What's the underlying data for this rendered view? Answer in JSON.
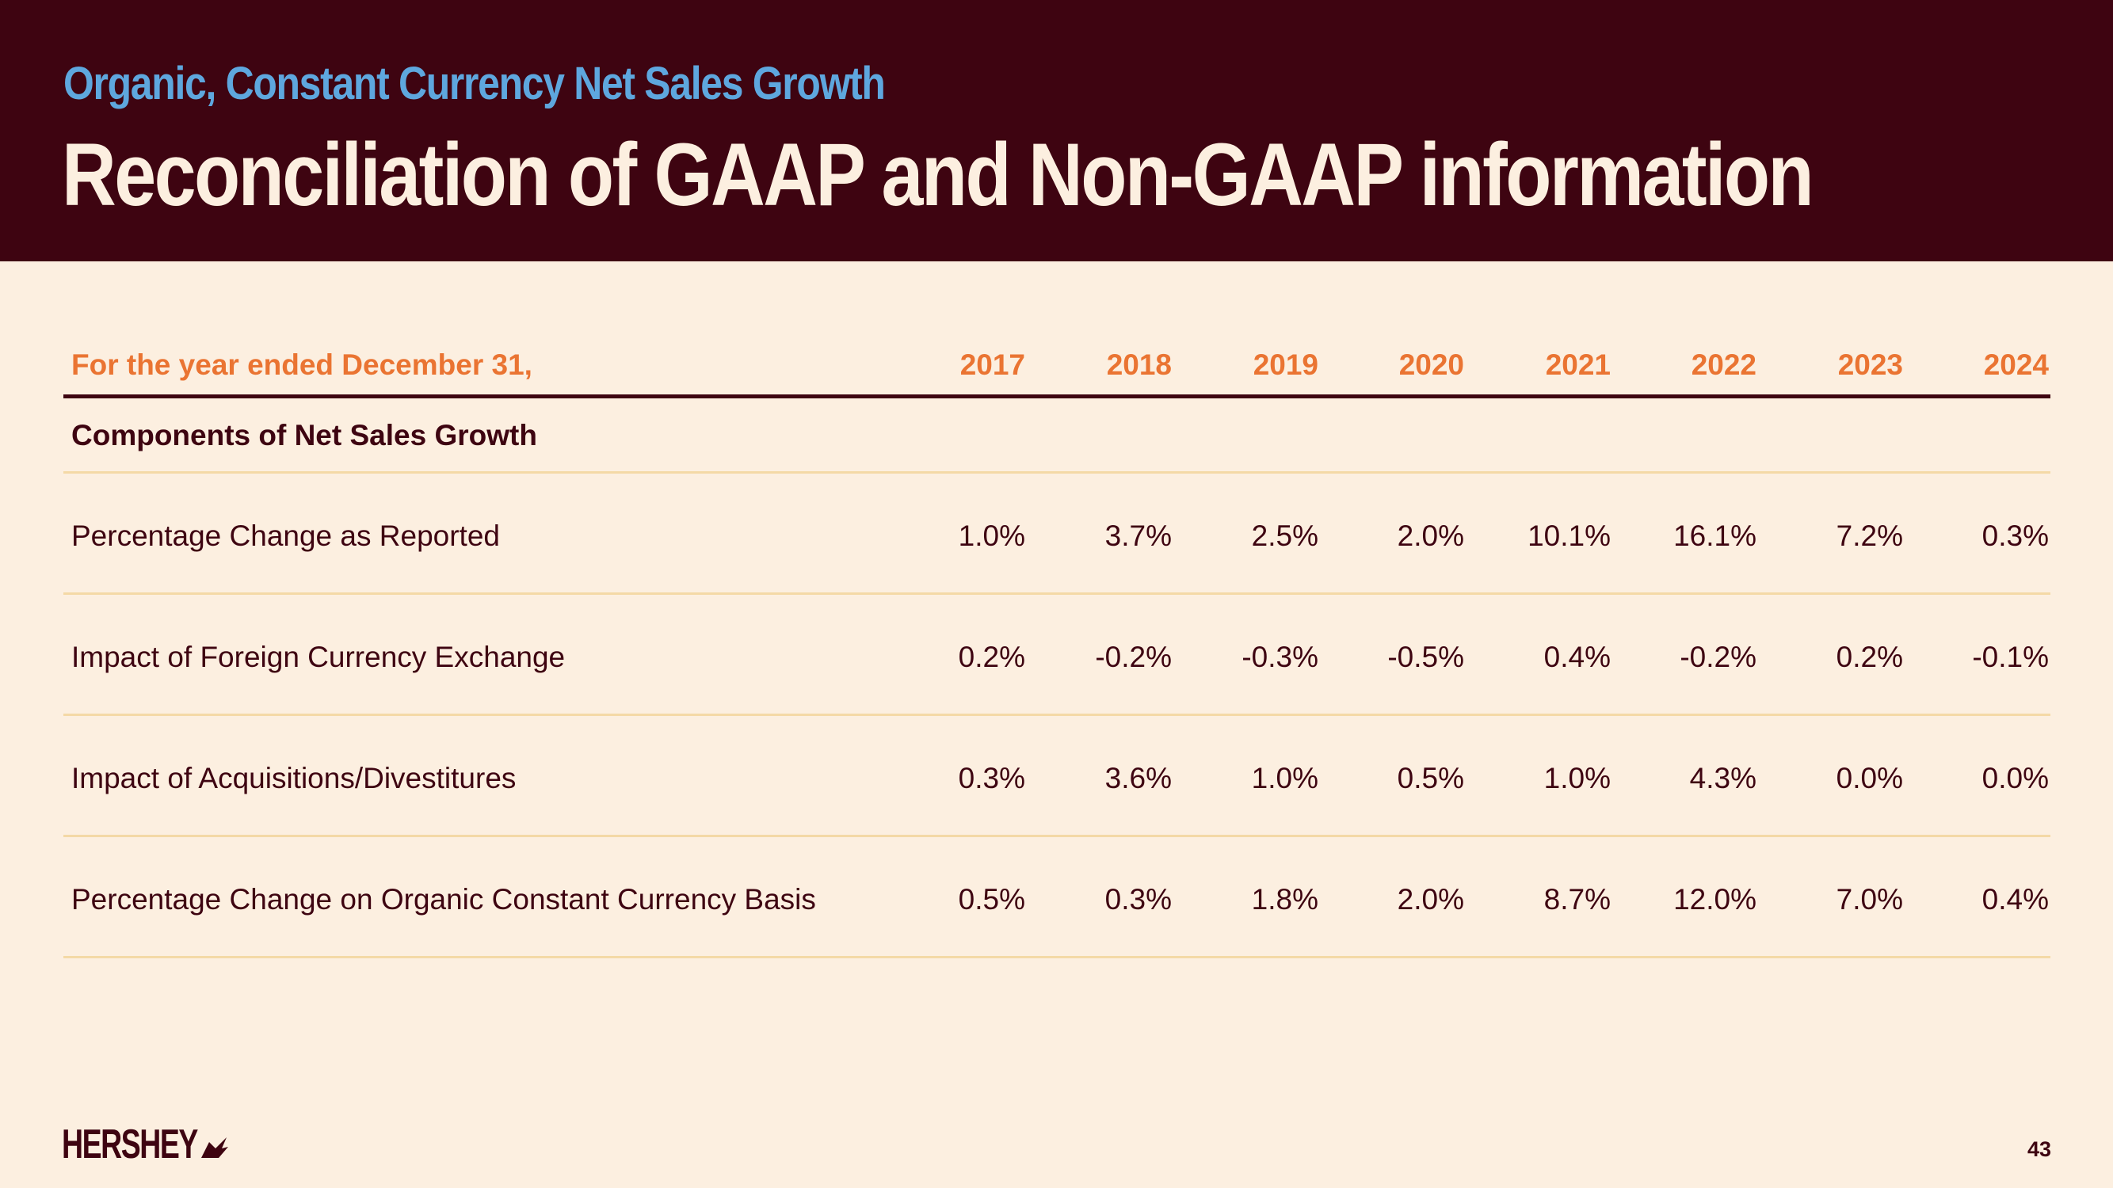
{
  "header": {
    "subtitle": "Organic, Constant Currency Net Sales Growth",
    "title": "Reconciliation of GAAP and Non-GAAP information"
  },
  "table": {
    "row_header_label": "For the year ended December 31,",
    "years": [
      "2017",
      "2018",
      "2019",
      "2020",
      "2021",
      "2022",
      "2023",
      "2024"
    ],
    "section_label": "Components of Net Sales Growth",
    "rows": [
      {
        "label": "Percentage Change as Reported",
        "values": [
          "1.0%",
          "3.7%",
          "2.5%",
          "2.0%",
          "10.1%",
          "16.1%",
          "7.2%",
          "0.3%"
        ]
      },
      {
        "label": "Impact of Foreign Currency Exchange",
        "values": [
          "0.2%",
          "-0.2%",
          "-0.3%",
          "-0.5%",
          "0.4%",
          "-0.2%",
          "0.2%",
          "-0.1%"
        ]
      },
      {
        "label": "Impact of Acquisitions/Divestitures",
        "values": [
          "0.3%",
          "3.6%",
          "1.0%",
          "0.5%",
          "1.0%",
          "4.3%",
          "0.0%",
          "0.0%"
        ]
      },
      {
        "label": "Percentage Change on Organic Constant Currency Basis",
        "values": [
          "0.5%",
          "0.3%",
          "1.8%",
          "2.0%",
          "8.7%",
          "12.0%",
          "7.0%",
          "0.4%"
        ]
      }
    ]
  },
  "footer": {
    "logo_text": "HERSHEY",
    "page_number": "43"
  },
  "colors": {
    "header_bg": "#3e0411",
    "page_bg": "#fcefe0",
    "subtitle": "#5ea7de",
    "column_header": "#ea7432",
    "row_divider": "#f4d9a6"
  }
}
